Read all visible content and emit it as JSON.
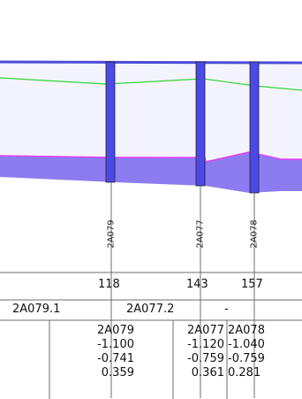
{
  "nodes": [
    {
      "name": "2A079",
      "distance": "118",
      "values": [
        "-1.100",
        "-0.741",
        "0.359"
      ]
    },
    {
      "name": "2A077",
      "distance": "143",
      "values": [
        "-1.120",
        "-0.759",
        "0.361"
      ]
    },
    {
      "name": "2A078",
      "distance": "157",
      "values": [
        "-1.040",
        "-0.759",
        "0.281"
      ]
    }
  ],
  "profile_row": [
    "2A079.1",
    "2A077.2",
    "-"
  ],
  "colors": {
    "bed_fill": "#8c7cf0",
    "water_fill": "#f4f4ff",
    "top_line": "#4b4bd6",
    "water_line": "#31d631",
    "bed_edge": "#e43cf2",
    "node_fill": "#4b49e8",
    "grid": "#6d6d6d"
  }
}
